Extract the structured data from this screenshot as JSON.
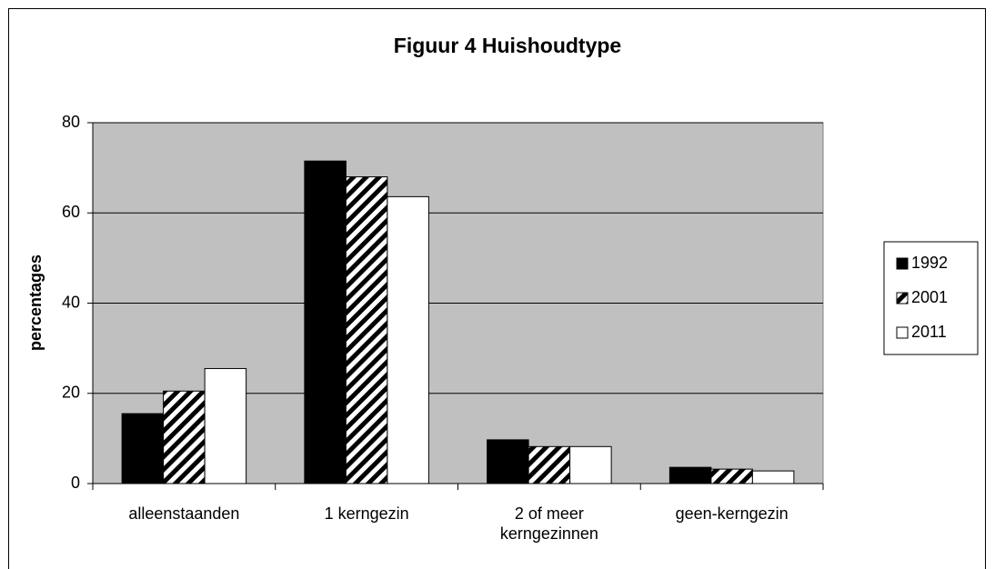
{
  "chart_data": {
    "type": "bar",
    "title": "Figuur 4 Huishoudtype",
    "y_label": "percentages",
    "categories": [
      "alleenstaanden",
      "1 kerngezin",
      "2 of meer kerngezinnen",
      "geen-kerngezin"
    ],
    "series": [
      {
        "name": "1992",
        "color": "#000000",
        "values": [
          15.5,
          71.5,
          9.7,
          3.6
        ]
      },
      {
        "name": "2001",
        "color": "#000000",
        "pattern": "diagonal",
        "values": [
          20.5,
          68,
          8.2,
          3.2
        ]
      },
      {
        "name": "2011",
        "color": "#ffffff",
        "values": [
          25.5,
          63.6,
          8.2,
          2.8
        ]
      }
    ],
    "ylim": [
      0,
      80
    ],
    "yticks": [
      0,
      20,
      40,
      60,
      80
    ],
    "grid": true,
    "legend": "right",
    "plot_background": "#c0c0c0"
  }
}
